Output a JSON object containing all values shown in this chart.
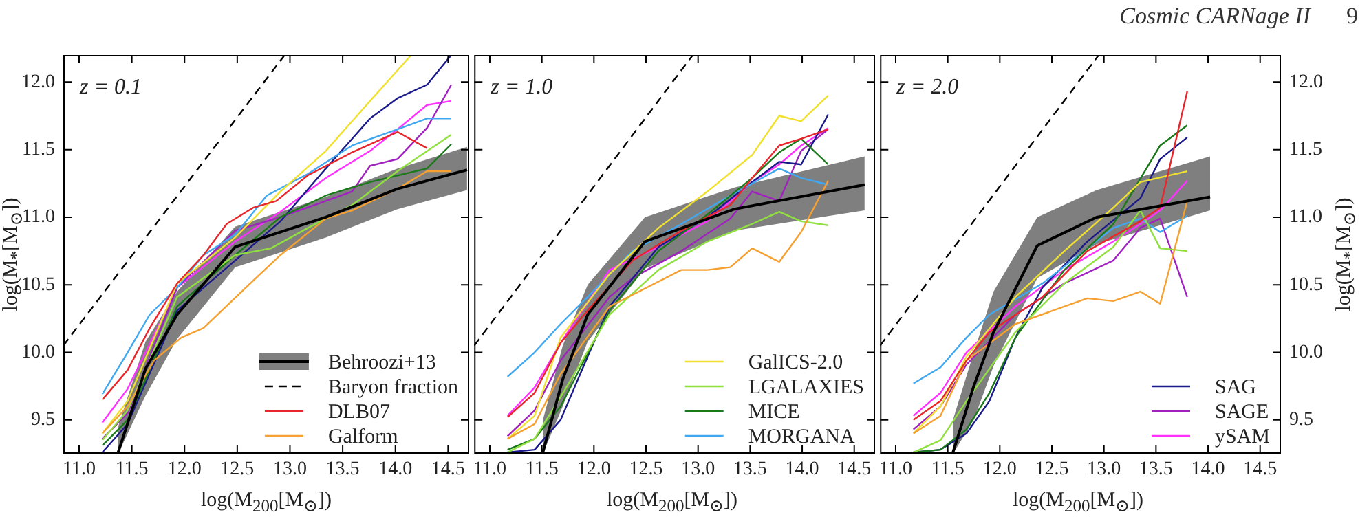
{
  "chart_data": [
    {
      "type": "line",
      "xlabel": "log(M$_{200}$[M$_{⊙}$])",
      "ylabel": "log(M$_{*}$[M$_{⊙}$])",
      "annotations": [
        "z = 0.1"
      ],
      "legend": "bottom right",
      "tick_labels": "xy",
      "xlim": [
        10.85,
        14.7
      ],
      "ylim": [
        9.25,
        12.2
      ],
      "xticks": [
        {
          "value": 11,
          "label": "11.0"
        },
        11.5,
        {
          "value": 12,
          "label": "12.0"
        },
        12.5,
        {
          "value": 13,
          "label": "13.0"
        },
        13.5,
        {
          "value": 14,
          "label": "14.0"
        },
        14.5
      ],
      "yticks": [
        9.5,
        {
          "value": 10,
          "label": "10.0"
        },
        10.5,
        {
          "value": 11,
          "label": "11.0"
        },
        11.5,
        {
          "value": 12,
          "label": "12.0"
        }
      ],
      "series": [
        {
          "name": "Behroozi+13",
          "color": "#000000",
          "x": [
            11.37,
            11.63,
            11.93,
            12.48,
            13.34,
            14.02,
            14.68
          ],
          "values": [
            9.26,
            9.88,
            10.28,
            10.78,
            11.0,
            11.21,
            11.35
          ],
          "upper": [
            9.45,
            10.08,
            10.45,
            10.93,
            11.15,
            11.36,
            11.52
          ],
          "lower": [
            9.25,
            9.68,
            10.1,
            10.63,
            10.85,
            11.06,
            11.2
          ]
        },
        {
          "name": "Baryon fraction",
          "color": "#000000",
          "line_style": "dashed",
          "x": [
            10.85,
            12.95
          ],
          "values": [
            10.05,
            12.2
          ]
        },
        {
          "name": "DLB07",
          "color": "#e8262b",
          "x": [
            11.22,
            11.46,
            11.67,
            11.93,
            12.18,
            12.4,
            12.65,
            12.87,
            13.17,
            13.59,
            14.02,
            14.3
          ],
          "values": [
            9.65,
            9.87,
            10.18,
            10.51,
            10.72,
            10.95,
            11.07,
            11.12,
            11.31,
            11.48,
            11.63,
            11.51
          ]
        },
        {
          "name": "Galform",
          "color": "#f5a030",
          "x": [
            11.22,
            11.46,
            11.71,
            11.97,
            12.18,
            12.61,
            12.91,
            13.34,
            13.59,
            14.02,
            14.3,
            14.53
          ],
          "values": [
            9.4,
            9.6,
            9.94,
            10.11,
            10.18,
            10.5,
            10.72,
            10.99,
            11.05,
            11.21,
            11.34,
            11.34
          ]
        },
        {
          "color": "#f0e030",
          "x": [
            11.22,
            11.46,
            11.93,
            12.48,
            12.91,
            13.34,
            13.76,
            14.15
          ],
          "values": [
            9.4,
            9.64,
            10.51,
            10.85,
            11.19,
            11.49,
            11.86,
            12.2
          ]
        },
        {
          "color": "#90e040",
          "x": [
            11.22,
            11.46,
            11.93,
            12.48,
            12.82,
            13.17,
            13.59,
            14.02,
            14.53
          ],
          "values": [
            9.35,
            9.57,
            10.41,
            10.72,
            10.77,
            10.92,
            11.09,
            11.34,
            11.61
          ]
        },
        {
          "color": "#1a7a1a",
          "x": [
            11.22,
            11.46,
            11.93,
            12.48,
            12.91,
            13.34,
            13.76,
            14.3,
            14.53
          ],
          "values": [
            9.31,
            9.5,
            10.34,
            10.72,
            11.0,
            11.16,
            11.26,
            11.36,
            11.54
          ]
        },
        {
          "color": "#40a8f0",
          "x": [
            11.22,
            11.46,
            11.67,
            11.93,
            12.18,
            12.48,
            12.78,
            13.17,
            13.59,
            14.02,
            14.3,
            14.53
          ],
          "values": [
            9.69,
            10.0,
            10.28,
            10.48,
            10.72,
            10.87,
            11.16,
            11.32,
            11.53,
            11.65,
            11.73,
            11.73
          ]
        },
        {
          "color": "#1a1a8a",
          "x": [
            11.22,
            11.46,
            11.93,
            12.48,
            12.91,
            13.34,
            13.76,
            14.02,
            14.3,
            14.53
          ],
          "values": [
            9.26,
            9.47,
            10.31,
            10.68,
            10.97,
            11.36,
            11.73,
            11.88,
            11.98,
            12.2
          ]
        },
        {
          "color": "#a020c0",
          "x": [
            11.22,
            11.46,
            11.93,
            12.48,
            12.91,
            13.34,
            13.59,
            13.76,
            14.02,
            14.3,
            14.53
          ],
          "values": [
            9.36,
            9.55,
            10.48,
            10.9,
            11.0,
            11.12,
            11.19,
            11.38,
            11.43,
            11.66,
            11.98
          ]
        },
        {
          "color": "#ff30ff",
          "x": [
            11.22,
            11.46,
            11.93,
            12.48,
            12.91,
            13.34,
            13.76,
            14.02,
            14.3,
            14.53
          ],
          "values": [
            9.48,
            9.73,
            10.48,
            10.82,
            11.04,
            11.29,
            11.49,
            11.65,
            11.83,
            11.86
          ]
        }
      ]
    },
    {
      "type": "line",
      "xlabel": "log(M$_{200}$[M$_{⊙}$])",
      "annotations": [
        "z = 1.0"
      ],
      "legend": "bottom right",
      "tick_labels": "x",
      "xlim": [
        10.85,
        14.7
      ],
      "ylim": [
        9.25,
        12.2
      ],
      "xticks": [
        {
          "value": 11,
          "label": "11.0"
        },
        11.5,
        {
          "value": 12,
          "label": "12.0"
        },
        12.5,
        {
          "value": 13,
          "label": "13.0"
        },
        13.5,
        {
          "value": 14,
          "label": "14.0"
        },
        14.5
      ],
      "yticks": [
        {
          "value": 9.5,
          "label": null
        },
        {
          "value": 10,
          "label": null
        },
        {
          "value": 10.5,
          "label": null
        },
        {
          "value": 11,
          "label": null
        },
        {
          "value": 11.5,
          "label": null
        },
        {
          "value": 12,
          "label": null
        }
      ],
      "series": [
        {
          "color": "#000000",
          "x": [
            11.51,
            11.7,
            11.94,
            12.49,
            13.35,
            14.6
          ],
          "values": [
            9.26,
            9.8,
            10.28,
            10.82,
            11.06,
            11.24
          ],
          "upper": [
            9.5,
            10.05,
            10.5,
            11.0,
            11.22,
            11.45
          ],
          "lower": [
            9.25,
            9.6,
            10.08,
            10.62,
            10.9,
            11.05
          ]
        },
        {
          "color": "#000000",
          "line_style": "dashed",
          "x": [
            10.85,
            12.95
          ],
          "values": [
            10.05,
            12.2
          ]
        },
        {
          "color": "#e8262b",
          "x": [
            11.17,
            11.43,
            11.68,
            11.94,
            12.37,
            12.84,
            13.31,
            13.52,
            13.78,
            13.99,
            14.25
          ],
          "values": [
            9.52,
            9.7,
            10.07,
            10.31,
            10.68,
            10.9,
            11.09,
            11.29,
            11.53,
            11.58,
            11.65
          ]
        },
        {
          "color": "#f5a030",
          "x": [
            11.17,
            11.43,
            11.68,
            12.15,
            12.84,
            13.09,
            13.31,
            13.52,
            13.78,
            13.99,
            14.25
          ],
          "values": [
            9.36,
            9.47,
            9.84,
            10.34,
            10.61,
            10.61,
            10.63,
            10.77,
            10.67,
            10.89,
            11.27
          ]
        },
        {
          "name": "GalICS-2.0",
          "color": "#f0e030",
          "x": [
            11.17,
            11.43,
            11.68,
            12.15,
            12.62,
            13.09,
            13.52,
            13.78,
            13.99,
            14.25
          ],
          "values": [
            9.36,
            9.53,
            10.11,
            10.58,
            10.92,
            11.19,
            11.46,
            11.75,
            11.71,
            11.9
          ]
        },
        {
          "name": "LGALAXIES",
          "color": "#90e040",
          "x": [
            11.17,
            11.43,
            11.68,
            12.15,
            12.62,
            13.09,
            13.52,
            13.78,
            13.99,
            14.25
          ],
          "values": [
            9.26,
            9.36,
            9.67,
            10.28,
            10.61,
            10.82,
            10.95,
            11.04,
            10.97,
            10.94
          ]
        },
        {
          "name": "MICE",
          "color": "#1a7a1a",
          "x": [
            11.17,
            11.43,
            11.68,
            12.15,
            12.62,
            13.09,
            13.52,
            13.78,
            13.99,
            14.25
          ],
          "values": [
            9.28,
            9.36,
            9.6,
            10.31,
            10.75,
            11.02,
            11.29,
            11.48,
            11.58,
            11.39
          ]
        },
        {
          "name": "MORGANA",
          "color": "#40a8f0",
          "x": [
            11.17,
            11.43,
            11.68,
            11.94,
            12.37,
            12.84,
            13.31,
            13.78,
            13.99,
            14.25
          ],
          "values": [
            9.82,
            10.0,
            10.21,
            10.41,
            10.75,
            10.95,
            11.16,
            11.36,
            11.29,
            11.24
          ]
        },
        {
          "color": "#1a1a8a",
          "x": [
            11.17,
            11.43,
            11.68,
            11.94,
            12.15,
            12.62,
            13.09,
            13.52,
            13.78,
            13.99,
            14.25
          ],
          "values": [
            9.26,
            9.28,
            9.5,
            9.97,
            10.34,
            10.78,
            11.0,
            11.26,
            11.41,
            11.39,
            11.76
          ]
        },
        {
          "color": "#a020c0",
          "x": [
            11.17,
            11.43,
            11.68,
            12.15,
            12.37,
            12.84,
            13.31,
            13.52,
            13.78,
            13.99,
            14.25
          ],
          "values": [
            9.38,
            9.57,
            9.94,
            10.41,
            10.55,
            10.75,
            10.99,
            11.19,
            11.12,
            11.49,
            11.65
          ]
        },
        {
          "color": "#ff30ff",
          "x": [
            11.17,
            11.43,
            11.68,
            12.15,
            12.62,
            13.09,
            13.52,
            13.78,
            13.99,
            14.25
          ],
          "values": [
            9.53,
            9.74,
            10.07,
            10.61,
            10.78,
            10.97,
            11.26,
            11.39,
            11.53,
            11.66
          ]
        }
      ]
    },
    {
      "type": "line",
      "xlabel": "log(M$_{200}$[M$_{⊙}$])",
      "ylabel": "log(M$_{*}$[M$_{⊙}$])",
      "annotations": [
        "z = 2.0",
        "Cosmic CARNage II",
        "9"
      ],
      "legend": "bottom right",
      "tick_labels": "xy",
      "xlim": [
        10.85,
        14.7
      ],
      "ylim": [
        9.25,
        12.2
      ],
      "xticks": [
        {
          "value": 11,
          "label": "11.0"
        },
        11.5,
        {
          "value": 12,
          "label": "12.0"
        },
        12.5,
        {
          "value": 13,
          "label": "13.0"
        },
        13.5,
        {
          "value": 14,
          "label": "14.0"
        },
        14.5
      ],
      "yticks": [
        9.5,
        {
          "value": 10,
          "label": "10.0"
        },
        10.5,
        {
          "value": 11,
          "label": "11.0"
        },
        11.5,
        {
          "value": 12,
          "label": "12.0"
        }
      ],
      "series": [
        {
          "color": "#000000",
          "x": [
            11.55,
            11.75,
            11.94,
            12.36,
            12.93,
            14.02
          ],
          "values": [
            9.26,
            9.75,
            10.15,
            10.79,
            11.0,
            11.15
          ],
          "upper": [
            9.5,
            10.0,
            10.45,
            11.0,
            11.2,
            11.45
          ],
          "lower": [
            9.25,
            9.5,
            9.9,
            10.55,
            10.8,
            11.05
          ]
        },
        {
          "color": "#000000",
          "line_style": "dashed",
          "x": [
            10.85,
            12.95
          ],
          "values": [
            10.05,
            12.2
          ]
        },
        {
          "color": "#e8262b",
          "x": [
            11.17,
            11.43,
            11.68,
            11.9,
            12.41,
            12.84,
            13.35,
            13.54,
            13.8
          ],
          "values": [
            9.5,
            9.64,
            9.94,
            10.15,
            10.41,
            10.75,
            10.97,
            11.07,
            11.93
          ]
        },
        {
          "color": "#f5a030",
          "x": [
            11.17,
            11.43,
            11.68,
            12.15,
            12.84,
            13.09,
            13.35,
            13.54,
            13.8
          ],
          "values": [
            9.4,
            9.53,
            9.94,
            10.21,
            10.4,
            10.38,
            10.45,
            10.36,
            11.12
          ]
        },
        {
          "color": "#f0e030",
          "x": [
            11.17,
            11.43,
            11.68,
            12.15,
            12.62,
            13.09,
            13.35,
            13.8
          ],
          "values": [
            9.4,
            9.6,
            9.97,
            10.41,
            10.75,
            11.07,
            11.26,
            11.34
          ]
        },
        {
          "color": "#90e040",
          "x": [
            11.17,
            11.43,
            11.68,
            12.15,
            12.62,
            13.09,
            13.35,
            13.54,
            13.8
          ],
          "values": [
            9.26,
            9.35,
            9.64,
            10.15,
            10.51,
            10.78,
            11.05,
            10.77,
            10.75
          ]
        },
        {
          "color": "#1a7a1a",
          "x": [
            11.17,
            11.43,
            11.68,
            11.9,
            12.15,
            12.62,
            13.09,
            13.54,
            13.8
          ],
          "values": [
            9.26,
            9.28,
            9.43,
            9.7,
            10.11,
            10.61,
            10.95,
            11.53,
            11.68
          ]
        },
        {
          "color": "#40a8f0",
          "x": [
            11.17,
            11.43,
            11.68,
            11.9,
            12.41,
            13.09,
            13.35,
            13.54,
            13.8
          ],
          "values": [
            9.77,
            9.89,
            10.11,
            10.28,
            10.51,
            10.92,
            10.99,
            10.89,
            11.01
          ]
        },
        {
          "name": "SAG",
          "color": "#1a1a8a",
          "x": [
            11.17,
            11.43,
            11.68,
            11.9,
            12.15,
            12.41,
            12.84,
            13.35,
            13.54,
            13.8
          ],
          "values": [
            9.26,
            9.28,
            9.4,
            9.64,
            10.11,
            10.48,
            10.82,
            11.14,
            11.43,
            11.59
          ]
        },
        {
          "name": "SAGE",
          "color": "#a020c0",
          "x": [
            11.17,
            11.43,
            11.68,
            12.15,
            12.62,
            13.09,
            13.35,
            13.54,
            13.8
          ],
          "values": [
            9.43,
            9.6,
            9.91,
            10.28,
            10.51,
            10.68,
            10.92,
            10.99,
            10.41
          ]
        },
        {
          "name": "ySAM",
          "color": "#ff30ff",
          "x": [
            11.17,
            11.43,
            11.68,
            12.15,
            12.62,
            13.09,
            13.35,
            13.54,
            13.8
          ],
          "values": [
            9.53,
            9.7,
            10.0,
            10.34,
            10.61,
            10.82,
            10.95,
            11.05,
            11.27
          ]
        }
      ]
    }
  ]
}
